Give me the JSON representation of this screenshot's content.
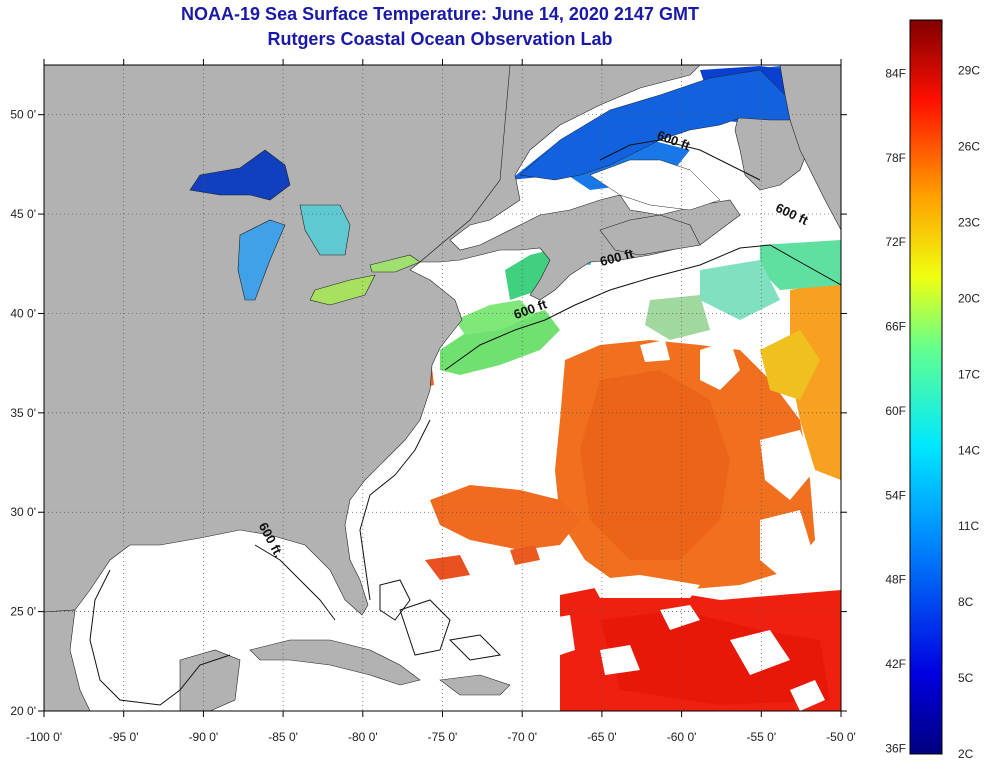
{
  "title": {
    "line1": "NOAA-19 Sea Surface Temperature:  June 14, 2020 2147 GMT",
    "line2": "Rutgers Coastal Ocean Observation Lab"
  },
  "map": {
    "lon_min": -100,
    "lon_max": -50,
    "lat_min": 20,
    "lat_max": 52.5,
    "lon_ticks": [
      {
        "value": -100,
        "label": "-100 0'"
      },
      {
        "value": -95,
        "label": "-95 0'"
      },
      {
        "value": -90,
        "label": "-90 0'"
      },
      {
        "value": -85,
        "label": "-85 0'"
      },
      {
        "value": -80,
        "label": "-80 0'"
      },
      {
        "value": -75,
        "label": "-75 0'"
      },
      {
        "value": -70,
        "label": "-70 0'"
      },
      {
        "value": -65,
        "label": "-65 0'"
      },
      {
        "value": -60,
        "label": "-60 0'"
      },
      {
        "value": -55,
        "label": "-55 0'"
      },
      {
        "value": -50,
        "label": "-50 0'"
      }
    ],
    "lat_ticks": [
      {
        "value": 50,
        "label": "50 0'"
      },
      {
        "value": 45,
        "label": "45 0'"
      },
      {
        "value": 40,
        "label": "40 0'"
      },
      {
        "value": 35,
        "label": "35 0'"
      },
      {
        "value": 30,
        "label": "30 0'"
      },
      {
        "value": 25,
        "label": "25 0'"
      },
      {
        "value": 20,
        "label": "20 0'"
      }
    ],
    "contour_labels": [
      {
        "text": "600 ft",
        "lon": -60.6,
        "lat": 48.5,
        "rotate": 20
      },
      {
        "text": "600 ft",
        "lon": -53.2,
        "lat": 44.8,
        "rotate": 25
      },
      {
        "text": "600 ft",
        "lon": -64,
        "lat": 42.6,
        "rotate": -15
      },
      {
        "text": "600 ft",
        "lon": -69.4,
        "lat": 40.0,
        "rotate": -20
      },
      {
        "text": "600 ft.",
        "lon": -86.0,
        "lat": 28.5,
        "rotate": 62
      }
    ]
  },
  "colorbar": {
    "min_c": 2,
    "max_c": 31,
    "labels_f": [
      "84F",
      "78F",
      "72F",
      "66F",
      "60F",
      "54F",
      "48F",
      "42F",
      "36F"
    ],
    "labels_c": [
      "29C",
      "26C",
      "23C",
      "20C",
      "17C",
      "14C",
      "11C",
      "8C",
      "5C",
      "2C"
    ]
  },
  "colors": {
    "land": "#b2b2b2",
    "cloud": "#ffffff",
    "grid": "#555555"
  }
}
